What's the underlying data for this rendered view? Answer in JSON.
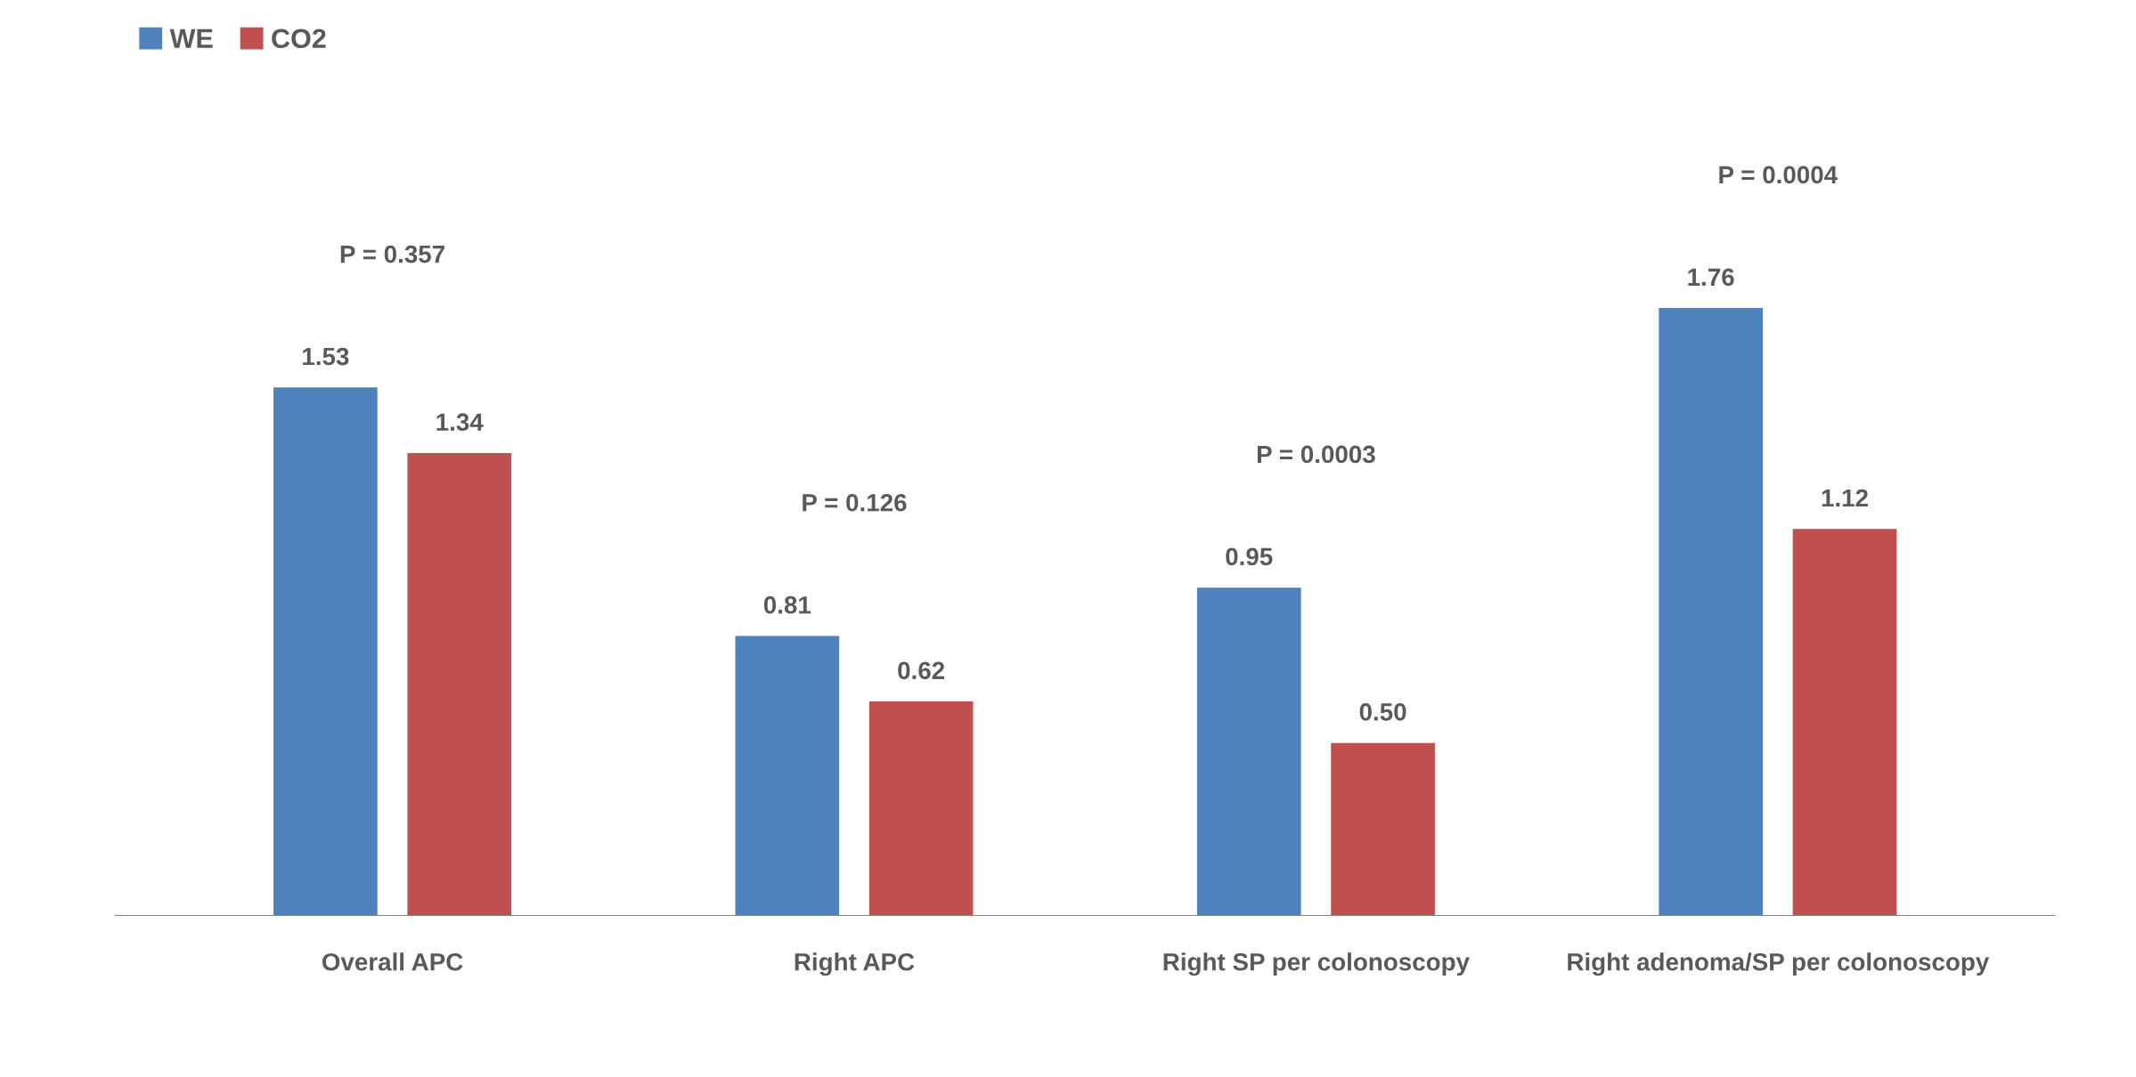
{
  "chart_data": {
    "type": "bar",
    "categories": [
      "Overall APC",
      "Right APC",
      "Right SP per colonoscopy",
      "Right adenoma/SP per colonoscopy"
    ],
    "series": [
      {
        "name": "WE",
        "color": "#4f81bd",
        "values": [
          1.53,
          0.81,
          0.95,
          1.76
        ],
        "value_labels": [
          "1.53",
          "0.81",
          "0.95",
          "1.76"
        ]
      },
      {
        "name": "CO2",
        "color": "#c0504d",
        "values": [
          1.34,
          0.62,
          0.5,
          1.12
        ],
        "value_labels": [
          "1.34",
          "0.62",
          "0.50",
          "1.12"
        ]
      }
    ],
    "legend": "top left",
    "grid": false,
    "annotations": [
      "P = 0.357",
      "P = 0.126",
      "P = 0.0003",
      "P = 0.0004"
    ]
  }
}
